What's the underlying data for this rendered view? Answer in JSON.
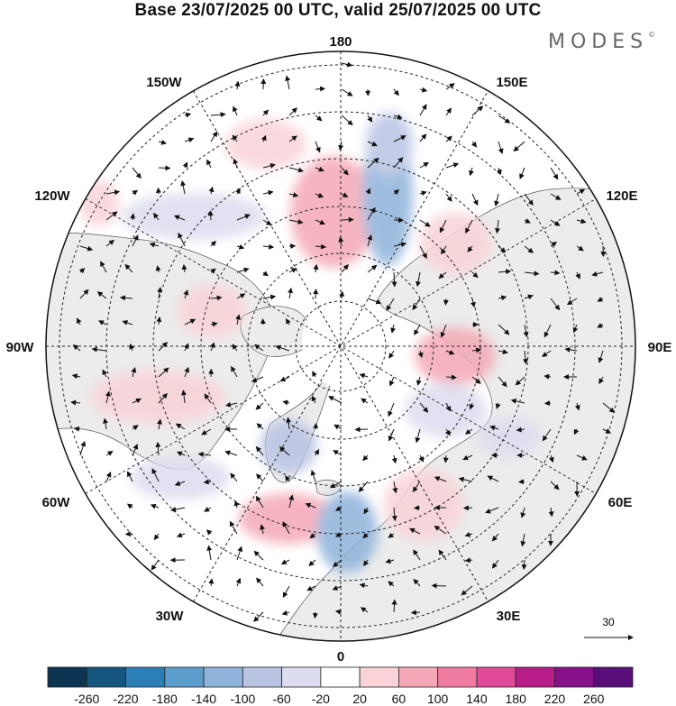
{
  "title": "Base 23/07/2025 00 UTC, valid 25/07/2025 00 UTC",
  "brand": {
    "name": "MODES",
    "mark": "©"
  },
  "map": {
    "projection": "north-polar-stereographic",
    "longitude_labels": {
      "top": "180",
      "bottom": "0",
      "left": "90W",
      "right": "90E",
      "nw_upper": "150W",
      "ne_upper": "150E",
      "nw_lower": "120W",
      "ne_lower": "120E",
      "sw_upper": "60W",
      "se_upper": "60E",
      "sw_lower": "30W",
      "se_lower": "30E"
    },
    "vector_reference": {
      "label": "30"
    }
  },
  "colorbar": {
    "labels": [
      "-260",
      "-220",
      "-180",
      "-140",
      "-100",
      "-60",
      "-20",
      "20",
      "60",
      "100",
      "140",
      "180",
      "220",
      "260"
    ],
    "colors": [
      "#0d3450",
      "#14567e",
      "#2a7fb6",
      "#5d9dcb",
      "#8fb3da",
      "#b9c4e3",
      "#dcdcef",
      "#ffffff",
      "#f9d3d8",
      "#f4a8b5",
      "#ef7ba0",
      "#e04a96",
      "#b81d8a",
      "#88128c",
      "#5a0e7a"
    ]
  }
}
